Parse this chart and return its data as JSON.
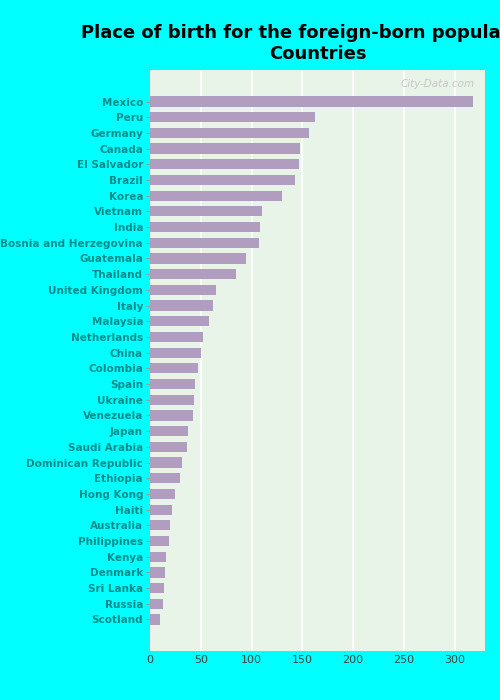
{
  "title": "Place of birth for the foreign-born population -\nCountries",
  "categories": [
    "Mexico",
    "Peru",
    "Germany",
    "Canada",
    "El Salvador",
    "Brazil",
    "Korea",
    "Vietnam",
    "India",
    "Bosnia and Herzegovina",
    "Guatemala",
    "Thailand",
    "United Kingdom",
    "Italy",
    "Malaysia",
    "Netherlands",
    "China",
    "Colombia",
    "Spain",
    "Ukraine",
    "Venezuela",
    "Japan",
    "Saudi Arabia",
    "Dominican Republic",
    "Ethiopia",
    "Hong Kong",
    "Haiti",
    "Australia",
    "Philippines",
    "Kenya",
    "Denmark",
    "Sri Lanka",
    "Russia",
    "Scotland"
  ],
  "values": [
    318,
    163,
    157,
    148,
    147,
    143,
    130,
    110,
    108,
    107,
    95,
    85,
    65,
    62,
    58,
    52,
    50,
    47,
    44,
    43,
    42,
    37,
    36,
    32,
    30,
    25,
    22,
    20,
    19,
    16,
    15,
    14,
    13,
    10
  ],
  "bar_color": "#b09dc0",
  "fig_bg_color": "#00ffff",
  "plot_bg_color": "#e8f4e8",
  "title_color": "#000000",
  "label_color": "#008b8b",
  "tick_color": "#404040",
  "watermark": "City-Data.com",
  "xlim": [
    0,
    330
  ],
  "xticks": [
    0,
    50,
    100,
    150,
    200,
    250,
    300
  ],
  "title_fontsize": 13,
  "label_fontsize": 7.5,
  "tick_fontsize": 8
}
